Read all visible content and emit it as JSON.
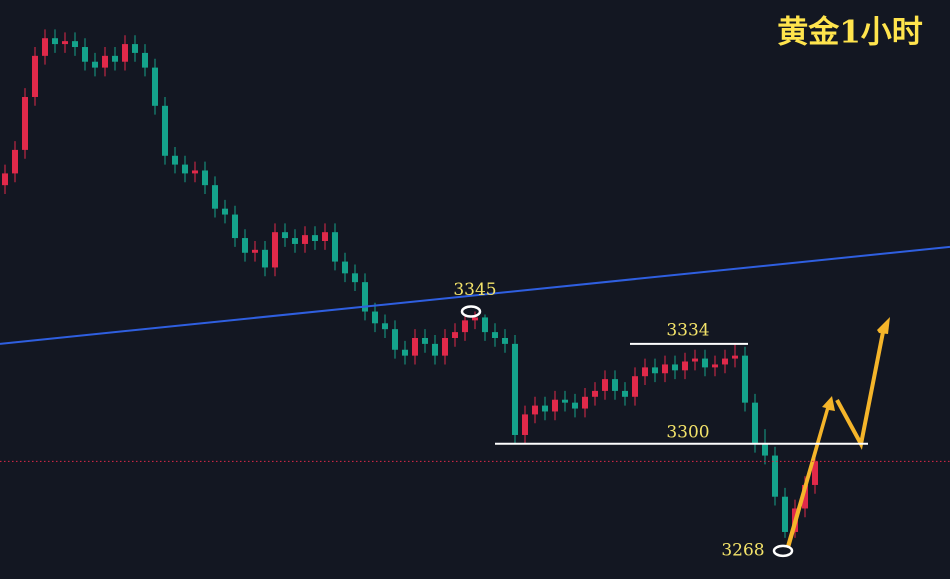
{
  "chart_data": {
    "type": "candlestick",
    "title": "黄金1小时",
    "title_color": "#ffe44d",
    "background": "#131722",
    "up_color": "#e0294a",
    "down_color": "#14a38b",
    "ylim": [
      3254,
      3451
    ],
    "open": [
      3388,
      3392,
      3400,
      3418,
      3432,
      3438,
      3436,
      3437,
      3435,
      3430,
      3428,
      3432,
      3430,
      3436,
      3433,
      3428,
      3415,
      3398,
      3395,
      3392,
      3393,
      3388,
      3380,
      3378,
      3370,
      3365,
      3366,
      3360,
      3372,
      3370,
      3368,
      3371,
      3369,
      3372,
      3362,
      3358,
      3355,
      3345,
      3341,
      3339,
      3332,
      3330,
      3336,
      3334,
      3330,
      3336,
      3338,
      3342,
      3343,
      3338,
      3336,
      3334,
      3303,
      3310,
      3313,
      3311,
      3315,
      3314,
      3312,
      3316,
      3318,
      3322,
      3318,
      3316,
      3323,
      3326,
      3324,
      3327,
      3325,
      3328,
      3329,
      3326,
      3327,
      3329,
      3330,
      3314,
      3300,
      3296,
      3282,
      3270,
      3278,
      3286
    ],
    "high": [
      3395,
      3403,
      3421,
      3435,
      3441,
      3441,
      3440,
      3440,
      3438,
      3433,
      3435,
      3435,
      3439,
      3439,
      3436,
      3431,
      3418,
      3401,
      3398,
      3396,
      3396,
      3391,
      3383,
      3381,
      3373,
      3369,
      3369,
      3375,
      3375,
      3373,
      3374,
      3374,
      3375,
      3375,
      3365,
      3361,
      3358,
      3348,
      3344,
      3342,
      3335,
      3339,
      3339,
      3337,
      3339,
      3341,
      3344,
      3345,
      3344,
      3341,
      3339,
      3337,
      3313,
      3316,
      3316,
      3318,
      3318,
      3317,
      3319,
      3321,
      3325,
      3325,
      3321,
      3326,
      3329,
      3329,
      3330,
      3330,
      3331,
      3332,
      3332,
      3330,
      3332,
      3334,
      3333,
      3317,
      3305,
      3299,
      3285,
      3281,
      3289,
      3297
    ],
    "low": [
      3385,
      3389,
      3397,
      3415,
      3429,
      3433,
      3433,
      3432,
      3427,
      3425,
      3425,
      3427,
      3427,
      3430,
      3425,
      3412,
      3395,
      3392,
      3389,
      3389,
      3385,
      3377,
      3375,
      3367,
      3362,
      3362,
      3357,
      3357,
      3367,
      3365,
      3365,
      3366,
      3366,
      3359,
      3355,
      3352,
      3342,
      3338,
      3336,
      3329,
      3327,
      3327,
      3331,
      3327,
      3327,
      3333,
      3335,
      3339,
      3335,
      3333,
      3331,
      3300,
      3300,
      3307,
      3308,
      3308,
      3311,
      3309,
      3309,
      3313,
      3315,
      3315,
      3313,
      3313,
      3320,
      3321,
      3321,
      3322,
      3322,
      3325,
      3323,
      3323,
      3324,
      3326,
      3311,
      3297,
      3293,
      3279,
      3268,
      3268,
      3275,
      3283
    ],
    "close": [
      3392,
      3400,
      3418,
      3432,
      3438,
      3436,
      3437,
      3435,
      3430,
      3428,
      3432,
      3430,
      3436,
      3433,
      3428,
      3415,
      3398,
      3395,
      3392,
      3393,
      3388,
      3380,
      3378,
      3370,
      3365,
      3366,
      3360,
      3372,
      3370,
      3368,
      3371,
      3369,
      3372,
      3362,
      3358,
      3355,
      3345,
      3341,
      3339,
      3332,
      3330,
      3336,
      3334,
      3330,
      3336,
      3338,
      3342,
      3343,
      3338,
      3336,
      3334,
      3303,
      3310,
      3313,
      3311,
      3315,
      3314,
      3312,
      3316,
      3318,
      3322,
      3318,
      3316,
      3323,
      3326,
      3324,
      3327,
      3325,
      3328,
      3329,
      3326,
      3327,
      3329,
      3330,
      3314,
      3300,
      3296,
      3282,
      3270,
      3278,
      3286,
      3294
    ],
    "trendline": {
      "color": "#2f5fe0",
      "values": [
        3334,
        3367
      ]
    },
    "current_price": {
      "value": 3294,
      "color": "#e0294a"
    },
    "annotations": [
      3345,
      3334,
      3300,
      3268
    ]
  }
}
